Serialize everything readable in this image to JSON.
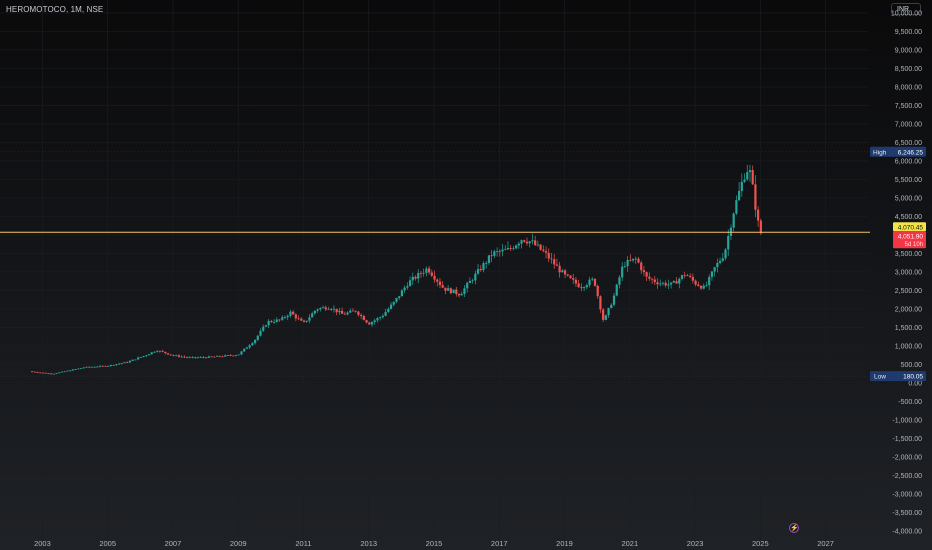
{
  "header": {
    "symbol_title": "HEROMOTOCO, 1M, NSE",
    "currency": "INR"
  },
  "chart_data": {
    "type": "candlestick",
    "title": "HEROMOTOCO, 1M, NSE",
    "ylim": [
      -4250,
      10350
    ],
    "xlim": [
      2001.7,
      2028.3
    ],
    "y_ticks": [
      -4000,
      -3500,
      -3000,
      -2500,
      -2000,
      -1500,
      -1000,
      -500,
      0,
      500,
      1000,
      1500,
      2000,
      2500,
      3000,
      3500,
      4000,
      4500,
      5000,
      5500,
      6000,
      6500,
      7000,
      7500,
      8000,
      8500,
      9000,
      9500,
      10000
    ],
    "y_tick_labels": [
      "-4,000.00",
      "-3,500.00",
      "-3,000.00",
      "-2,500.00",
      "-2,000.00",
      "-1,500.00",
      "-1,000.00",
      "-500.00",
      "0.00",
      "500.00",
      "1,000.00",
      "1,500.00",
      "2,000.00",
      "2,500.00",
      "3,000.00",
      "3,500.00",
      "4,000.00",
      "4,500.00",
      "5,000.00",
      "5,500.00",
      "6,000.00",
      "6,500.00",
      "7,000.00",
      "7,500.00",
      "8,000.00",
      "8,500.00",
      "9,000.00",
      "9,500.00",
      "10,000.00"
    ],
    "x_ticks": [
      2003,
      2005,
      2007,
      2009,
      2011,
      2013,
      2015,
      2017,
      2019,
      2021,
      2023,
      2025,
      2027
    ],
    "x_tick_labels": [
      "2003",
      "2005",
      "2007",
      "2009",
      "2011",
      "2013",
      "2015",
      "2017",
      "2019",
      "2021",
      "2023",
      "2025",
      "2027"
    ],
    "price_anchors": [
      [
        2002.6,
        310
      ],
      [
        2003.3,
        240
      ],
      [
        2003.8,
        330
      ],
      [
        2004.3,
        420
      ],
      [
        2005.0,
        460
      ],
      [
        2005.6,
        560
      ],
      [
        2006.2,
        760
      ],
      [
        2006.5,
        880
      ],
      [
        2007.0,
        740
      ],
      [
        2007.5,
        680
      ],
      [
        2008.0,
        690
      ],
      [
        2008.5,
        720
      ],
      [
        2009.0,
        760
      ],
      [
        2009.5,
        1150
      ],
      [
        2009.9,
        1650
      ],
      [
        2010.3,
        1700
      ],
      [
        2010.6,
        1900
      ],
      [
        2011.0,
        1600
      ],
      [
        2011.4,
        2000
      ],
      [
        2011.8,
        2050
      ],
      [
        2012.2,
        1850
      ],
      [
        2012.6,
        1950
      ],
      [
        2013.0,
        1600
      ],
      [
        2013.4,
        1800
      ],
      [
        2013.8,
        2200
      ],
      [
        2014.2,
        2700
      ],
      [
        2014.8,
        3100
      ],
      [
        2015.3,
        2550
      ],
      [
        2015.8,
        2400
      ],
      [
        2016.3,
        2950
      ],
      [
        2016.8,
        3500
      ],
      [
        2017.3,
        3600
      ],
      [
        2017.7,
        3900
      ],
      [
        2018.0,
        3800
      ],
      [
        2018.4,
        3500
      ],
      [
        2018.7,
        3200
      ],
      [
        2019.0,
        2900
      ],
      [
        2019.5,
        2600
      ],
      [
        2019.9,
        2800
      ],
      [
        2020.2,
        1650
      ],
      [
        2020.5,
        2300
      ],
      [
        2020.8,
        3200
      ],
      [
        2021.2,
        3350
      ],
      [
        2021.5,
        2850
      ],
      [
        2021.9,
        2700
      ],
      [
        2022.3,
        2650
      ],
      [
        2022.7,
        2950
      ],
      [
        2023.0,
        2700
      ],
      [
        2023.3,
        2550
      ],
      [
        2023.6,
        3100
      ],
      [
        2023.9,
        3500
      ],
      [
        2024.2,
        4700
      ],
      [
        2024.5,
        5600
      ],
      [
        2024.65,
        5850
      ],
      [
        2024.8,
        5100
      ],
      [
        2024.9,
        4450
      ],
      [
        2025.0,
        4051.9
      ]
    ]
  },
  "annotations": {
    "high_label": "High",
    "high_value": 6246.25,
    "high_text": "6,246.25",
    "low_label": "Low",
    "low_value": 180.05,
    "low_text": "180.05",
    "horizontal_line_value": 4070.45,
    "horizontal_line_text": "4,070.45",
    "last_price_value": 4051.9,
    "last_price_text": "4,051.90",
    "countdown_text": "5d 10h"
  },
  "colors": {
    "up": "#26a69a",
    "down": "#ef5350",
    "hline": "#f5c463",
    "hline_label_bg": "#f5e34a",
    "last_price_bg": "#f23645",
    "high_low_bg": "#1e3a6e",
    "axis_text": "#b2b5be",
    "flash_icon": "#9c4bc4"
  },
  "icons": {
    "flash": "lightning-icon"
  }
}
